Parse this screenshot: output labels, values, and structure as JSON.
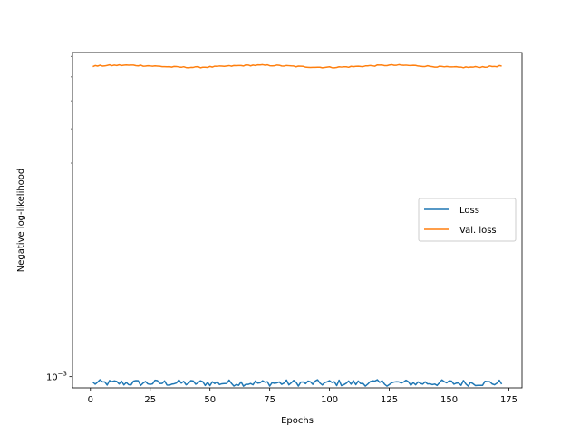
{
  "chart_data": {
    "type": "line",
    "xlabel": "Epochs",
    "ylabel": "Negative log-likelihood",
    "yscale": "log",
    "xlim": [
      -7.5,
      180.5
    ],
    "ylim": [
      0.00093,
      0.0082
    ],
    "x_ticks": [
      0,
      25,
      50,
      75,
      100,
      125,
      150,
      175
    ],
    "y_major_tick_labels": [
      {
        "value": 0.001,
        "base": "10",
        "exponent": "−3"
      }
    ],
    "y_minor_ticks": [
      0.004,
      0.005,
      0.006,
      0.007,
      0.008
    ],
    "grid": false,
    "legend": {
      "placement": "center-right"
    },
    "series": [
      {
        "name": "Loss",
        "color": "#1f77b4",
        "x_range": [
          1,
          172
        ],
        "y_approx": 0.00096,
        "y_band": [
          0.00094,
          0.00098
        ]
      },
      {
        "name": "Val. loss",
        "color": "#ff7f0e",
        "x_range": [
          1,
          172
        ],
        "y_approx": 0.0075,
        "y_band": [
          0.0074,
          0.0076
        ]
      }
    ]
  }
}
